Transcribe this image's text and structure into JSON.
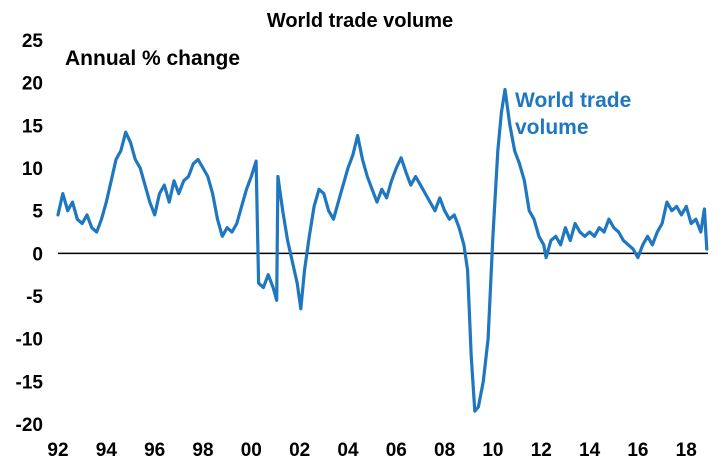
{
  "chart_data": {
    "type": "line",
    "title": "World trade volume",
    "annotation": "Annual % change",
    "xlabel": "",
    "ylabel": "",
    "x_tick_labels": [
      "92",
      "94",
      "96",
      "98",
      "00",
      "02",
      "04",
      "06",
      "08",
      "10",
      "12",
      "14",
      "16",
      "18"
    ],
    "y_tick_labels": [
      "25",
      "20",
      "15",
      "10",
      "5",
      "0",
      "-5",
      "-10",
      "-15",
      "-20"
    ],
    "xlim": [
      1992,
      2018.9
    ],
    "ylim": [
      -20,
      25
    ],
    "grid": false,
    "zero_line": true,
    "series": [
      {
        "name": "World trade volume",
        "label_lines": [
          "World trade",
          "volume"
        ],
        "color": "#1f77c0",
        "points": [
          [
            1992.0,
            4.5
          ],
          [
            1992.2,
            7.0
          ],
          [
            1992.4,
            5.0
          ],
          [
            1992.6,
            6.0
          ],
          [
            1992.8,
            4.0
          ],
          [
            1993.0,
            3.5
          ],
          [
            1993.2,
            4.5
          ],
          [
            1993.4,
            3.0
          ],
          [
            1993.6,
            2.5
          ],
          [
            1993.8,
            4.0
          ],
          [
            1994.0,
            6.0
          ],
          [
            1994.2,
            8.5
          ],
          [
            1994.4,
            11.0
          ],
          [
            1994.6,
            12.0
          ],
          [
            1994.8,
            14.2
          ],
          [
            1995.0,
            13.0
          ],
          [
            1995.2,
            11.0
          ],
          [
            1995.4,
            10.0
          ],
          [
            1995.6,
            8.0
          ],
          [
            1995.8,
            6.0
          ],
          [
            1996.0,
            4.5
          ],
          [
            1996.2,
            7.0
          ],
          [
            1996.4,
            8.0
          ],
          [
            1996.6,
            6.0
          ],
          [
            1996.8,
            8.5
          ],
          [
            1997.0,
            7.0
          ],
          [
            1997.2,
            8.5
          ],
          [
            1997.4,
            9.0
          ],
          [
            1997.6,
            10.5
          ],
          [
            1997.8,
            11.0
          ],
          [
            1998.0,
            10.0
          ],
          [
            1998.2,
            9.0
          ],
          [
            1998.4,
            7.0
          ],
          [
            1998.6,
            4.0
          ],
          [
            1998.8,
            2.0
          ],
          [
            1999.0,
            3.0
          ],
          [
            1999.2,
            2.5
          ],
          [
            1999.4,
            3.5
          ],
          [
            1999.6,
            5.5
          ],
          [
            1999.8,
            7.5
          ],
          [
            2000.0,
            9.0
          ],
          [
            2000.2,
            10.8
          ],
          [
            2000.3,
            -3.5
          ],
          [
            2000.5,
            -4.0
          ],
          [
            2000.7,
            -2.5
          ],
          [
            2000.9,
            -4.0
          ],
          [
            2001.05,
            -5.5
          ],
          [
            2001.1,
            9.0
          ],
          [
            2001.3,
            5.0
          ],
          [
            2001.5,
            1.5
          ],
          [
            2001.7,
            -1.0
          ],
          [
            2001.9,
            -3.5
          ],
          [
            2002.05,
            -6.5
          ],
          [
            2002.2,
            -2.0
          ],
          [
            2002.4,
            2.0
          ],
          [
            2002.6,
            5.5
          ],
          [
            2002.8,
            7.5
          ],
          [
            2003.0,
            7.0
          ],
          [
            2003.2,
            5.0
          ],
          [
            2003.4,
            4.0
          ],
          [
            2003.6,
            6.0
          ],
          [
            2003.8,
            8.0
          ],
          [
            2004.0,
            10.0
          ],
          [
            2004.2,
            11.5
          ],
          [
            2004.4,
            13.8
          ],
          [
            2004.6,
            11.0
          ],
          [
            2004.8,
            9.0
          ],
          [
            2005.0,
            7.5
          ],
          [
            2005.2,
            6.0
          ],
          [
            2005.4,
            7.5
          ],
          [
            2005.6,
            6.5
          ],
          [
            2005.8,
            8.5
          ],
          [
            2006.0,
            10.0
          ],
          [
            2006.2,
            11.2
          ],
          [
            2006.4,
            9.5
          ],
          [
            2006.6,
            8.0
          ],
          [
            2006.8,
            9.0
          ],
          [
            2007.0,
            8.0
          ],
          [
            2007.2,
            7.0
          ],
          [
            2007.4,
            6.0
          ],
          [
            2007.6,
            5.0
          ],
          [
            2007.8,
            6.5
          ],
          [
            2008.0,
            5.0
          ],
          [
            2008.2,
            4.0
          ],
          [
            2008.4,
            4.5
          ],
          [
            2008.6,
            3.0
          ],
          [
            2008.8,
            1.0
          ],
          [
            2008.95,
            -2.0
          ],
          [
            2009.1,
            -12.0
          ],
          [
            2009.25,
            -18.5
          ],
          [
            2009.4,
            -18.0
          ],
          [
            2009.6,
            -15.0
          ],
          [
            2009.8,
            -10.0
          ],
          [
            2010.0,
            2.0
          ],
          [
            2010.2,
            12.0
          ],
          [
            2010.35,
            16.5
          ],
          [
            2010.5,
            19.2
          ],
          [
            2010.7,
            15.0
          ],
          [
            2010.9,
            12.0
          ],
          [
            2011.1,
            10.5
          ],
          [
            2011.3,
            8.5
          ],
          [
            2011.5,
            5.0
          ],
          [
            2011.7,
            4.0
          ],
          [
            2011.9,
            2.0
          ],
          [
            2012.1,
            1.0
          ],
          [
            2012.2,
            -0.5
          ],
          [
            2012.4,
            1.5
          ],
          [
            2012.6,
            2.0
          ],
          [
            2012.8,
            1.0
          ],
          [
            2013.0,
            3.0
          ],
          [
            2013.2,
            1.5
          ],
          [
            2013.4,
            3.5
          ],
          [
            2013.6,
            2.5
          ],
          [
            2013.8,
            2.0
          ],
          [
            2014.0,
            2.5
          ],
          [
            2014.2,
            2.0
          ],
          [
            2014.4,
            3.0
          ],
          [
            2014.6,
            2.5
          ],
          [
            2014.8,
            4.0
          ],
          [
            2015.0,
            3.0
          ],
          [
            2015.2,
            2.5
          ],
          [
            2015.4,
            1.5
          ],
          [
            2015.6,
            1.0
          ],
          [
            2015.8,
            0.5
          ],
          [
            2016.0,
            -0.5
          ],
          [
            2016.2,
            1.0
          ],
          [
            2016.4,
            2.0
          ],
          [
            2016.6,
            1.0
          ],
          [
            2016.8,
            2.5
          ],
          [
            2017.0,
            3.5
          ],
          [
            2017.2,
            6.0
          ],
          [
            2017.4,
            5.0
          ],
          [
            2017.6,
            5.5
          ],
          [
            2017.8,
            4.5
          ],
          [
            2018.0,
            5.5
          ],
          [
            2018.2,
            3.5
          ],
          [
            2018.4,
            4.0
          ],
          [
            2018.6,
            2.5
          ],
          [
            2018.75,
            5.2
          ],
          [
            2018.85,
            0.5
          ]
        ]
      }
    ]
  }
}
